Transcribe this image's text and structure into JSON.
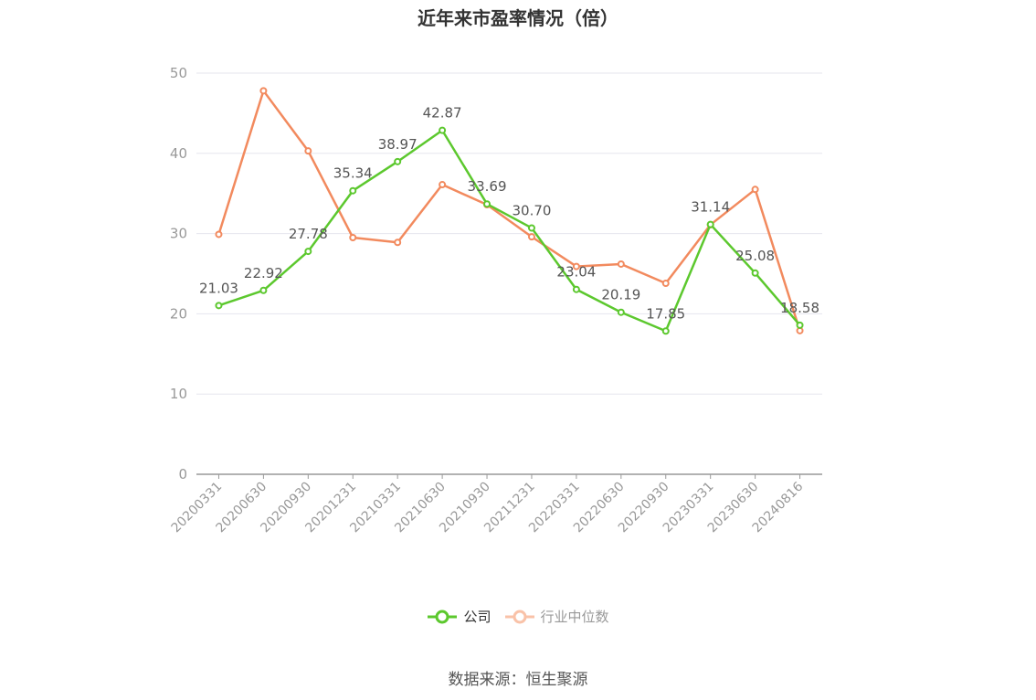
{
  "title": "近年来市盈率情况（倍）",
  "source": "数据来源：恒生聚源",
  "colors": {
    "company": "#5cc82e",
    "industry": "#f28a5e",
    "grid": "#e6e6ee",
    "axis": "#999999",
    "label": "#555555"
  },
  "chart_data": {
    "type": "line",
    "title": "近年来市盈率情况（倍）",
    "xlabel": "",
    "ylabel": "",
    "ylim": [
      0,
      50
    ],
    "yticks": [
      0,
      10,
      20,
      30,
      40,
      50
    ],
    "grid": true,
    "legend_position": "bottom",
    "categories": [
      "20200331",
      "20200630",
      "20200930",
      "20201231",
      "20210331",
      "20210630",
      "20210930",
      "20211231",
      "20220331",
      "20220630",
      "20220930",
      "20230331",
      "20230630",
      "20240816"
    ],
    "series": [
      {
        "name": "公司",
        "color": "#5cc82e",
        "labeled": true,
        "values": [
          21.03,
          22.92,
          27.78,
          35.34,
          38.97,
          42.87,
          33.69,
          30.7,
          23.04,
          20.19,
          17.85,
          31.14,
          25.08,
          18.58
        ],
        "labels": [
          "21.03",
          "22.92",
          "27.78",
          "35.34",
          "38.97",
          "42.87",
          "33.69",
          "30.70",
          "23.04",
          "20.19",
          "17.85",
          "31.14",
          "25.08",
          "18.58"
        ]
      },
      {
        "name": "行业中位数",
        "color": "#f28a5e",
        "labeled": false,
        "values": [
          29.9,
          47.8,
          40.3,
          29.5,
          28.9,
          36.1,
          33.6,
          29.6,
          25.9,
          26.2,
          23.8,
          31.1,
          35.5,
          17.9
        ]
      }
    ]
  }
}
